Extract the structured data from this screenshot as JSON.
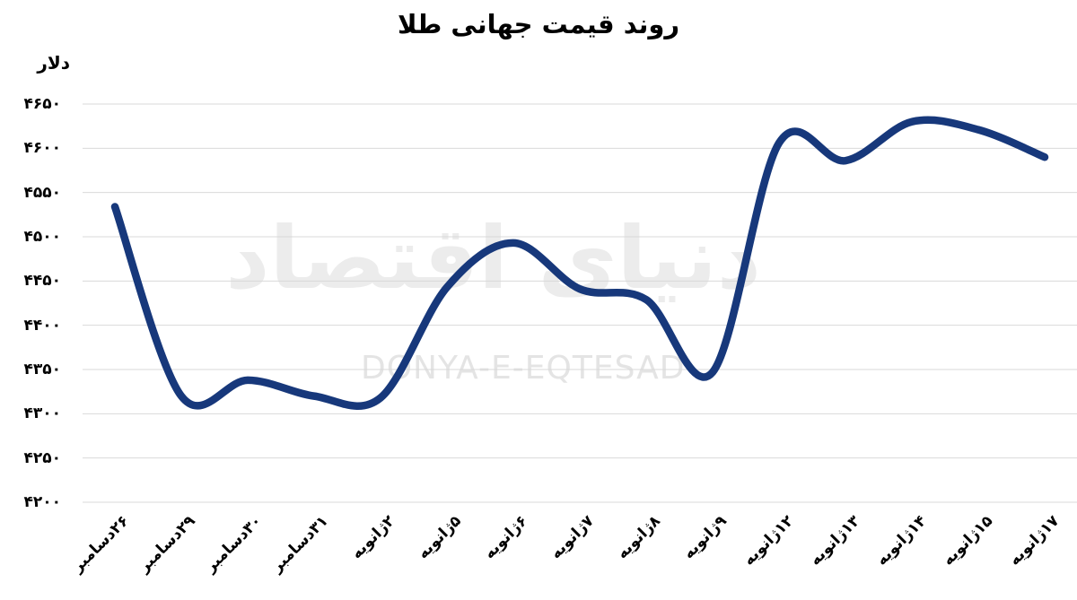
{
  "title": "روند قیمت جهانی طلا",
  "watermark": {
    "persian": "دنیای اقتصاد",
    "latin": "DONYA-E-EQTESAD"
  },
  "chart_data": {
    "type": "line",
    "title": "روند قیمت جهانی طلا",
    "ylabel": "دلار",
    "xlabel": "",
    "categories": [
      "۲۶دسامبر",
      "۲۹دسامبر",
      "۳۰دسامبر",
      "۳۱دسامبر",
      "۲ژانویه",
      "۵ژانویه",
      "۶ژانویه",
      "۷ژانویه",
      "۸ژانویه",
      "۹ژانویه",
      "۱۲ژانویه",
      "۱۳ژانویه",
      "۱۴ژانویه",
      "۱۵ژانویه",
      "۱۷ژانویه"
    ],
    "values": [
      4534,
      4320,
      4338,
      4320,
      4318,
      4443,
      4493,
      4441,
      4429,
      4347,
      4606,
      4586,
      4630,
      4621,
      4590
    ],
    "ylim": [
      4200,
      4650
    ],
    "yticks": [
      4200,
      4250,
      4300,
      4350,
      4400,
      4450,
      4500,
      4550,
      4600,
      4650
    ],
    "ytick_labels": [
      "۴۲۰۰",
      "۴۲۵۰",
      "۴۳۰۰",
      "۴۳۵۰",
      "۴۴۰۰",
      "۴۴۵۰",
      "۴۵۰۰",
      "۴۵۵۰",
      "۴۶۰۰",
      "۴۶۵۰"
    ],
    "grid": true,
    "legend": "none",
    "line_color": "#17387b",
    "grid_color": "#d9d9d9",
    "line_width": 8.5,
    "smoothing": "spline"
  }
}
